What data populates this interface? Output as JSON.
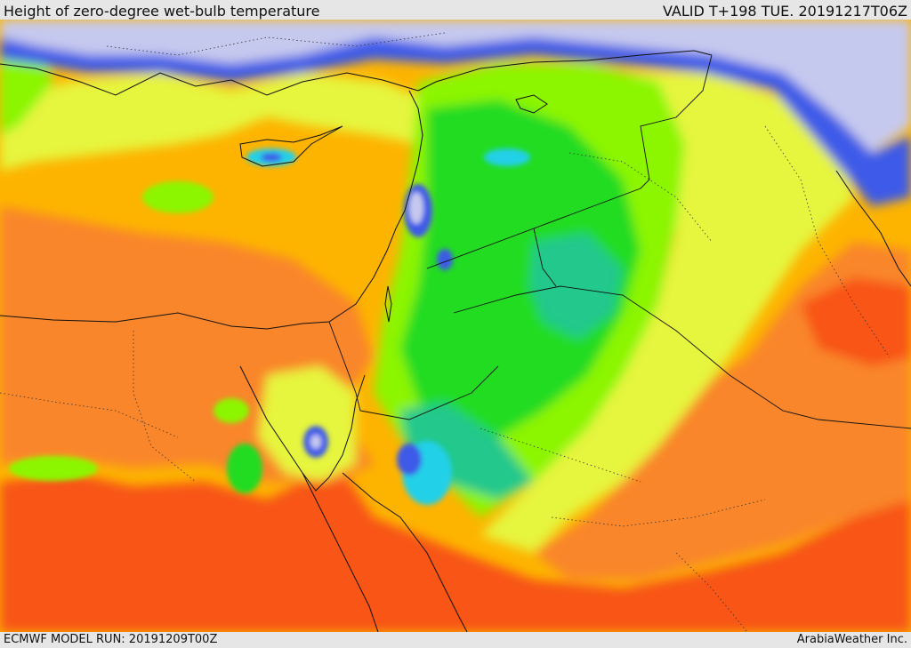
{
  "header": {
    "title": "Height of zero-degree wet-bulb temperature",
    "valid": "VALID T+198 TUE. 20191217T06Z"
  },
  "footer": {
    "model_run": "ECMWF MODEL RUN: 20191209T00Z",
    "credit": "ArabiaWeather Inc."
  },
  "map": {
    "region": "Eastern Mediterranean and Middle East",
    "palette": {
      "very_low": "#c6c9ee",
      "low_blue": "#3c5ae8",
      "cyan": "#22d0e8",
      "teal": "#22c88c",
      "green": "#22dc22",
      "lime": "#8cf500",
      "yellow": "#e6f53c",
      "amber": "#fdb400",
      "orange": "#f9862c",
      "red_orange": "#f85418",
      "coast": "#111111"
    }
  }
}
